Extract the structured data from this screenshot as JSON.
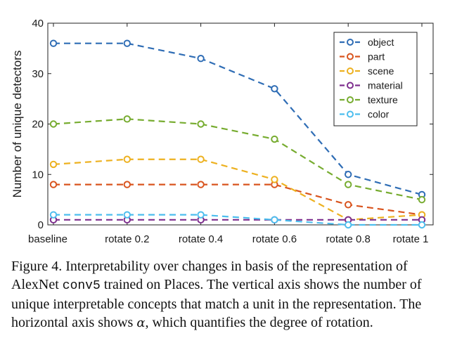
{
  "chart_data": {
    "type": "line",
    "title": "",
    "xlabel": "",
    "ylabel": "Number of unique detectors",
    "ylim": [
      0,
      40
    ],
    "yticks": [
      "0",
      "10",
      "20",
      "30",
      "40"
    ],
    "categories": [
      "baseline",
      "rotate 0.2",
      "rotate 0.4",
      "rotate 0.6",
      "rotate 0.8",
      "rotate 1"
    ],
    "grid": false,
    "legend_position": "top-right",
    "series": [
      {
        "name": "object",
        "color": "#2f6db5",
        "values": [
          36,
          36,
          33,
          27,
          10,
          6
        ]
      },
      {
        "name": "part",
        "color": "#d9541e",
        "values": [
          8,
          8,
          8,
          8,
          4,
          2
        ]
      },
      {
        "name": "scene",
        "color": "#edb120",
        "values": [
          12,
          13,
          13,
          9,
          1,
          2
        ]
      },
      {
        "name": "material",
        "color": "#7e2f8e",
        "values": [
          1,
          1,
          1,
          1,
          1,
          1
        ]
      },
      {
        "name": "texture",
        "color": "#77ac30",
        "values": [
          20,
          21,
          20,
          17,
          8,
          5
        ]
      },
      {
        "name": "color",
        "color": "#4dbeee",
        "values": [
          2,
          2,
          2,
          1,
          0,
          0
        ]
      }
    ]
  },
  "caption": {
    "part1": "Figure 4. Interpretability over changes in basis of the representation of AlexNet ",
    "code": "conv5",
    "part2": " trained on Places. The vertical axis shows the number of unique interpretable concepts that match a unit in the representation. The horizontal axis shows ",
    "symbol": "α",
    "part3": ", which quantifies the degree of rotation."
  }
}
